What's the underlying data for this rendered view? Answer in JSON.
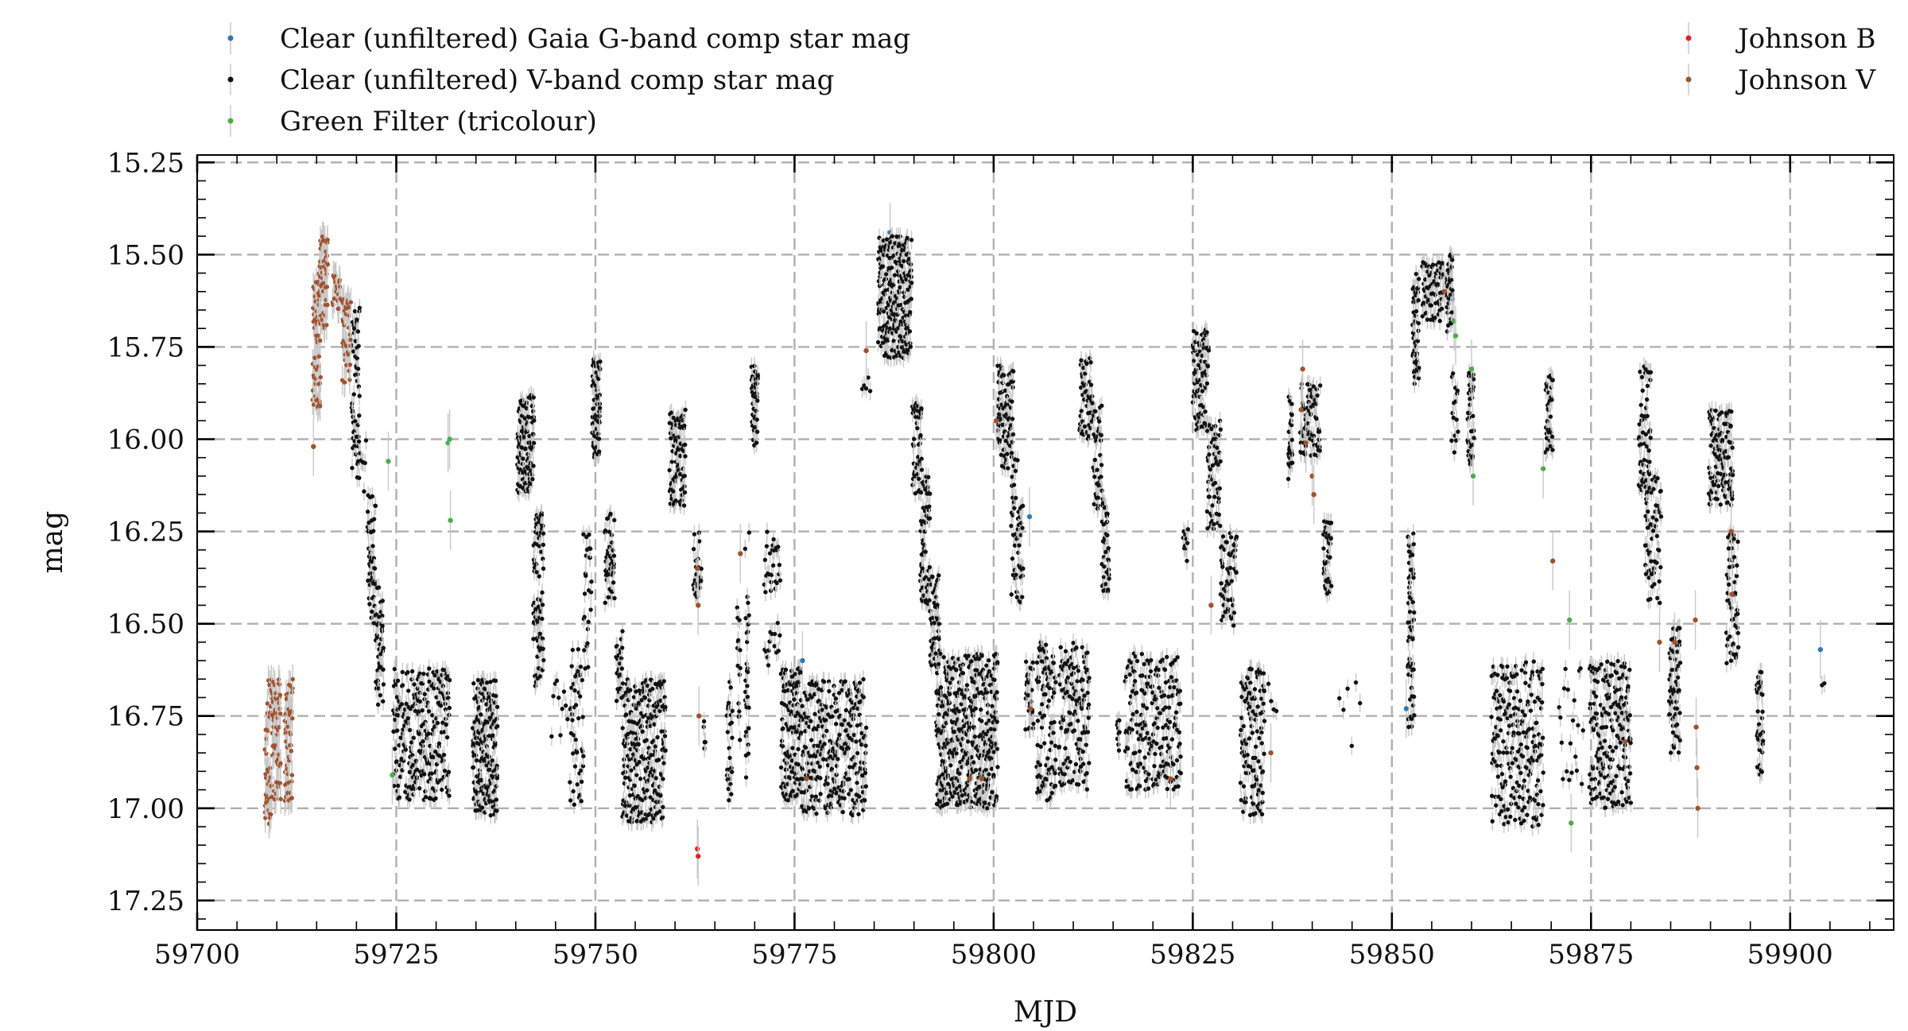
{
  "chart_data": {
    "type": "scatter",
    "xlabel": "MJD",
    "ylabel": "mag",
    "xlim": [
      59700,
      59913
    ],
    "ylim": [
      17.33,
      15.23
    ],
    "y_inverted": true,
    "grid": true,
    "legend": "top",
    "x_ticks": [
      59700,
      59725,
      59750,
      59775,
      59800,
      59825,
      59850,
      59875,
      59900
    ],
    "x_tick_labels": [
      "59700",
      "59725",
      "59750",
      "59775",
      "59800",
      "59825",
      "59850",
      "59875",
      "59900"
    ],
    "y_ticks": [
      15.25,
      15.5,
      15.75,
      16.0,
      16.25,
      16.5,
      16.75,
      17.0,
      17.25
    ],
    "y_tick_labels": [
      "15.25",
      "15.50",
      "15.75",
      "16.00",
      "16.25",
      "16.50",
      "16.75",
      "17.00",
      "17.25"
    ],
    "series": [
      {
        "name": "Clear (unfiltered) Gaia G-band comp star mag",
        "color": "#2f78b4",
        "points": [
          [
            59787.0,
            15.44
          ],
          [
            59804.5,
            16.21
          ],
          [
            59851.8,
            16.73
          ],
          [
            59857.6,
            15.62
          ],
          [
            59903.8,
            16.57
          ],
          [
            59776.0,
            16.6
          ]
        ]
      },
      {
        "name": "Clear (unfiltered) V-band comp star mag",
        "color": "#111111",
        "err": 0.025,
        "segments": [
          [
            59719.4,
            59720.4,
            15.6,
            16.08,
            50
          ],
          [
            59720.1,
            59721.2,
            16.0,
            16.15,
            10
          ],
          [
            59721.4,
            59722.4,
            16.15,
            16.5,
            45
          ],
          [
            59722.4,
            59723.4,
            16.4,
            16.72,
            45
          ],
          [
            59724.6,
            59731.7,
            16.62,
            16.98,
            260
          ],
          [
            59734.6,
            59737.7,
            16.65,
            17.02,
            200
          ],
          [
            59740.2,
            59742.3,
            15.88,
            16.15,
            110
          ],
          [
            59742.2,
            59743.5,
            16.2,
            16.7,
            80
          ],
          [
            59744.5,
            59746.5,
            16.65,
            16.82,
            10
          ],
          [
            59746.8,
            59748.5,
            16.55,
            17.0,
            45
          ],
          [
            59748.5,
            59749.5,
            16.25,
            16.65,
            25
          ],
          [
            59749.6,
            59750.6,
            15.78,
            16.05,
            70
          ],
          [
            59751.2,
            59752.4,
            16.2,
            16.45,
            45
          ],
          [
            59752.6,
            59753.4,
            16.52,
            16.72,
            25
          ],
          [
            59753.4,
            59758.8,
            16.65,
            17.05,
            260
          ],
          [
            59759.3,
            59761.3,
            15.92,
            16.18,
            90
          ],
          [
            59762.3,
            59763.3,
            16.25,
            16.45,
            25
          ],
          [
            59763.6,
            59763.8,
            16.72,
            16.85,
            6
          ],
          [
            59766.5,
            59767.2,
            16.65,
            16.98,
            25
          ],
          [
            59767.8,
            59768.2,
            16.45,
            16.82,
            15
          ],
          [
            59768.8,
            59769.3,
            16.25,
            16.92,
            30
          ],
          [
            59769.6,
            59770.4,
            15.8,
            16.02,
            45
          ],
          [
            59771.2,
            59773.2,
            16.25,
            16.62,
            40
          ],
          [
            59773.3,
            59775.8,
            16.62,
            16.98,
            120
          ],
          [
            59775.8,
            59784.0,
            16.65,
            17.02,
            300
          ],
          [
            59783.5,
            59784.5,
            15.82,
            15.88,
            5
          ],
          [
            59785.5,
            59789.7,
            15.45,
            15.78,
            260
          ],
          [
            59789.8,
            59791.0,
            15.9,
            16.15,
            50
          ],
          [
            59790.8,
            59792.0,
            16.1,
            16.45,
            60
          ],
          [
            59792.0,
            59793.2,
            16.35,
            16.62,
            50
          ],
          [
            59792.8,
            59800.5,
            16.58,
            17.0,
            450
          ],
          [
            59800.5,
            59802.5,
            15.8,
            16.08,
            90
          ],
          [
            59802.2,
            59803.7,
            16.05,
            16.45,
            50
          ],
          [
            59804.0,
            59805.0,
            16.6,
            16.8,
            30
          ],
          [
            59805.4,
            59807.8,
            16.55,
            16.98,
            100
          ],
          [
            59808.2,
            59812.0,
            16.55,
            16.95,
            140
          ],
          [
            59810.8,
            59812.4,
            15.78,
            16.0,
            50
          ],
          [
            59812.5,
            59813.6,
            15.9,
            16.2,
            40
          ],
          [
            59813.6,
            59814.5,
            16.15,
            16.42,
            40
          ],
          [
            59815.5,
            59815.8,
            16.75,
            16.85,
            10
          ],
          [
            59816.5,
            59823.5,
            16.58,
            16.95,
            220
          ],
          [
            59823.8,
            59824.4,
            16.15,
            16.35,
            10
          ],
          [
            59825.0,
            59827.0,
            15.7,
            15.98,
            80
          ],
          [
            59826.8,
            59828.5,
            15.95,
            16.25,
            60
          ],
          [
            59828.5,
            59830.5,
            16.25,
            16.52,
            60
          ],
          [
            59831.0,
            59834.0,
            16.62,
            17.02,
            120
          ],
          [
            59834.5,
            59835.5,
            16.65,
            16.75,
            4
          ],
          [
            59837.0,
            59837.5,
            15.88,
            16.12,
            30
          ],
          [
            59838.5,
            59841.0,
            15.85,
            16.05,
            70
          ],
          [
            59841.4,
            59842.4,
            16.22,
            16.42,
            40
          ],
          [
            59843.4,
            59846.0,
            16.65,
            16.85,
            6
          ],
          [
            59852.0,
            59852.8,
            16.25,
            16.78,
            60
          ],
          [
            59852.6,
            59853.4,
            15.55,
            15.85,
            50
          ],
          [
            59853.8,
            59856.5,
            15.52,
            15.68,
            70
          ],
          [
            59856.8,
            59857.6,
            15.5,
            15.72,
            40
          ],
          [
            59857.5,
            59858.3,
            15.8,
            16.05,
            15
          ],
          [
            59859.5,
            59860.3,
            15.82,
            16.08,
            40
          ],
          [
            59862.5,
            59869.0,
            16.6,
            17.05,
            220
          ],
          [
            59869.3,
            59870.2,
            15.82,
            16.05,
            40
          ],
          [
            59871.0,
            59874.0,
            16.62,
            16.95,
            20
          ],
          [
            59874.8,
            59880.0,
            16.6,
            17.0,
            200
          ],
          [
            59881.0,
            59882.5,
            15.8,
            16.15,
            60
          ],
          [
            59881.8,
            59883.8,
            16.1,
            16.45,
            60
          ],
          [
            59884.8,
            59886.2,
            16.5,
            16.85,
            60
          ],
          [
            59889.8,
            59892.8,
            15.92,
            16.18,
            120
          ],
          [
            59892.0,
            59893.5,
            16.25,
            16.62,
            50
          ],
          [
            59895.8,
            59896.6,
            16.62,
            16.92,
            40
          ],
          [
            59904.0,
            59904.3,
            16.66,
            16.68,
            2
          ]
        ]
      },
      {
        "name": "Green Filter (tricolour)",
        "color": "#4cac4c",
        "points": [
          [
            59724.0,
            16.06
          ],
          [
            59724.5,
            16.91
          ],
          [
            59731.5,
            16.01
          ],
          [
            59731.7,
            16.0
          ],
          [
            59731.8,
            16.22
          ],
          [
            59857.8,
            15.68
          ],
          [
            59858.0,
            15.72
          ],
          [
            59860.0,
            15.81
          ],
          [
            59860.2,
            16.1
          ],
          [
            59869.0,
            16.08
          ],
          [
            59872.3,
            16.49
          ],
          [
            59872.5,
            17.04
          ]
        ]
      },
      {
        "name": "Johnson B",
        "color": "#e22222",
        "points": [
          [
            59762.8,
            17.11
          ],
          [
            59762.9,
            17.13
          ]
        ]
      },
      {
        "name": "Johnson V",
        "color": "#a0522d",
        "err": 0.04,
        "segments": [
          [
            59708.5,
            59709.5,
            16.65,
            17.05,
            50
          ],
          [
            59709.5,
            59710.5,
            16.65,
            16.98,
            50
          ],
          [
            59711.0,
            59712.0,
            16.65,
            16.98,
            50
          ],
          [
            59714.5,
            59715.5,
            15.55,
            15.92,
            60
          ],
          [
            59715.3,
            59716.4,
            15.45,
            15.7,
            60
          ],
          [
            59717.0,
            59718.0,
            15.55,
            15.65,
            20
          ],
          [
            59718.2,
            59719.3,
            15.62,
            15.85,
            40
          ]
        ],
        "points": [
          [
            59714.6,
            16.02
          ],
          [
            59762.8,
            16.35
          ],
          [
            59762.9,
            16.45
          ],
          [
            59763.0,
            16.75
          ],
          [
            59768.2,
            16.31
          ],
          [
            59776.5,
            16.92
          ],
          [
            59784.0,
            15.76
          ],
          [
            59797.0,
            16.92
          ],
          [
            59798.5,
            16.92
          ],
          [
            59800.3,
            15.95
          ],
          [
            59804.6,
            16.73
          ],
          [
            59822.2,
            16.92
          ],
          [
            59827.3,
            16.45
          ],
          [
            59834.8,
            16.85
          ],
          [
            59838.6,
            15.92
          ],
          [
            59838.8,
            15.81
          ],
          [
            59839.2,
            16.01
          ],
          [
            59840.0,
            16.1
          ],
          [
            59840.2,
            16.15
          ],
          [
            59856.6,
            15.6
          ],
          [
            59870.2,
            16.33
          ],
          [
            59879.3,
            16.82
          ],
          [
            59883.6,
            16.55
          ],
          [
            59885.5,
            16.55
          ],
          [
            59888.1,
            16.49
          ],
          [
            59888.2,
            16.78
          ],
          [
            59888.3,
            16.89
          ],
          [
            59888.4,
            17.0
          ],
          [
            59892.6,
            16.25
          ],
          [
            59892.7,
            16.42
          ]
        ]
      }
    ]
  }
}
